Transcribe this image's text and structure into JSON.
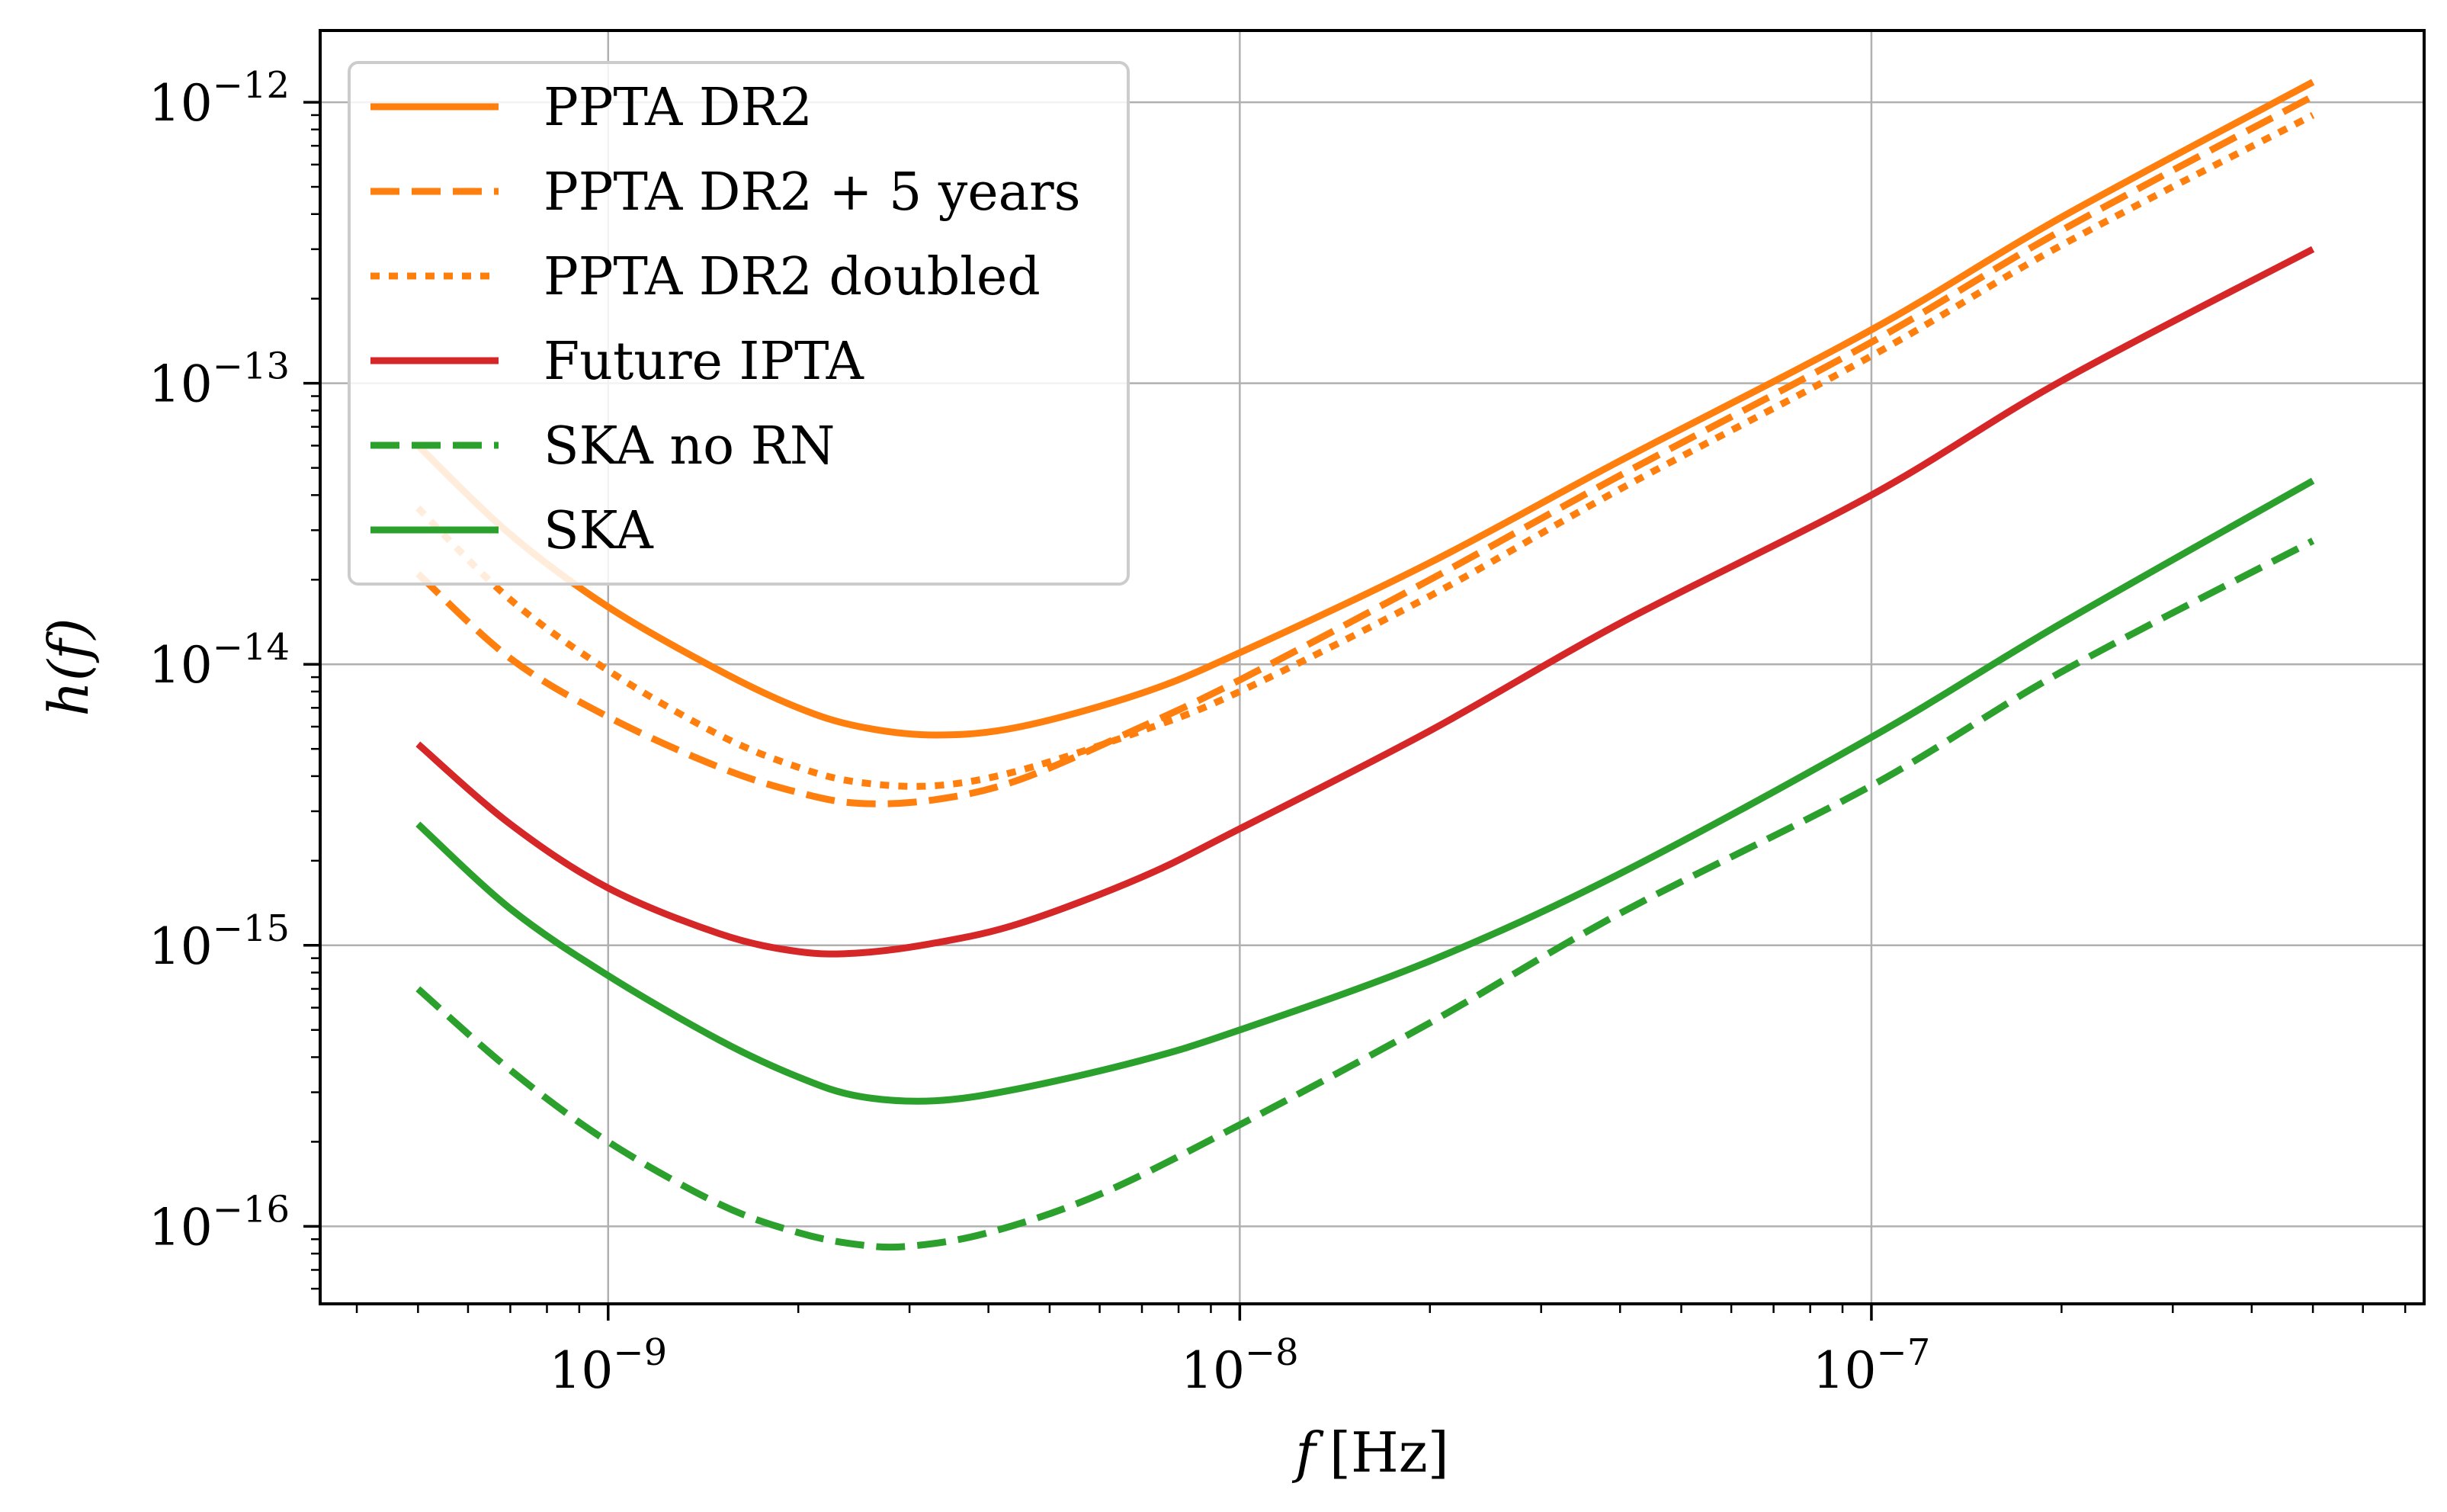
{
  "chart_data": {
    "type": "line",
    "title": "",
    "xlabel": "f",
    "xlabel_unit": "[Hz]",
    "ylabel": "h(f)",
    "xscale": "log",
    "yscale": "log",
    "xlim": [
      3.5e-10,
      7.5e-07
    ],
    "ylim": [
      5.3e-17,
      1.8e-12
    ],
    "grid": true,
    "legend_position": "top-left",
    "x_ticks": [
      {
        "value": 1e-09,
        "base": "10",
        "exp": "−9"
      },
      {
        "value": 1e-08,
        "base": "10",
        "exp": "−8"
      },
      {
        "value": 1e-07,
        "base": "10",
        "exp": "−7"
      }
    ],
    "y_ticks": [
      {
        "value": 1e-16,
        "base": "10",
        "exp": "−16"
      },
      {
        "value": 1e-15,
        "base": "10",
        "exp": "−15"
      },
      {
        "value": 1e-14,
        "base": "10",
        "exp": "−14"
      },
      {
        "value": 1e-13,
        "base": "10",
        "exp": "−13"
      },
      {
        "value": 1e-12,
        "base": "10",
        "exp": "−12"
      }
    ],
    "series": [
      {
        "name": "PPTA DR2",
        "color": "#ff7f0e",
        "dash": "solid",
        "x": [
          5e-10,
          7e-10,
          1e-09,
          1.5e-09,
          2e-09,
          2.5e-09,
          3.3e-09,
          4.5e-09,
          7e-09,
          1e-08,
          2e-08,
          4e-08,
          1e-07,
          2e-07,
          5e-07
        ],
        "y": [
          6e-14,
          2.9e-14,
          1.6e-14,
          9.5e-15,
          7e-15,
          6e-15,
          5.6e-15,
          6e-15,
          7.9e-15,
          1.1e-14,
          2.3e-14,
          5.3e-14,
          1.55e-13,
          3.9e-13,
          1.18e-12
        ]
      },
      {
        "name": "PPTA DR2 + 5 years",
        "color": "#ff7f0e",
        "dash": "dashed",
        "x": [
          5e-10,
          7e-10,
          1e-09,
          1.5e-09,
          2e-09,
          2.5e-09,
          3.3e-09,
          4.5e-09,
          7e-09,
          1e-08,
          2e-08,
          4e-08,
          1e-07,
          2e-07,
          5e-07
        ],
        "y": [
          2.1e-14,
          1.05e-14,
          6.5e-15,
          4.3e-15,
          3.5e-15,
          3.2e-15,
          3.3e-15,
          3.9e-15,
          6e-15,
          8.8e-15,
          2e-14,
          4.7e-14,
          1.4e-13,
          3.5e-13,
          1.05e-12
        ]
      },
      {
        "name": "PPTA DR2 doubled",
        "color": "#ff7f0e",
        "dash": "dotted",
        "x": [
          5e-10,
          7e-10,
          1e-09,
          1.5e-09,
          2e-09,
          2.5e-09,
          3.3e-09,
          4.5e-09,
          7e-09,
          1e-08,
          2e-08,
          4e-08,
          1e-07,
          2e-07,
          5e-07
        ],
        "y": [
          3.6e-14,
          1.7e-14,
          9.5e-15,
          5.6e-15,
          4.3e-15,
          3.8e-15,
          3.7e-15,
          4.2e-15,
          5.8e-15,
          8e-15,
          1.75e-14,
          4.2e-14,
          1.25e-13,
          3.1e-13,
          9e-13
        ]
      },
      {
        "name": "Future IPTA",
        "color": "#d62728",
        "dash": "solid",
        "x": [
          5e-10,
          7e-10,
          1e-09,
          1.5e-09,
          2e-09,
          2.5e-09,
          3.3e-09,
          4.5e-09,
          7e-09,
          1e-08,
          2e-08,
          4e-08,
          1e-07,
          2e-07,
          5e-07
        ],
        "y": [
          5.2e-15,
          2.7e-15,
          1.6e-15,
          1.1e-15,
          9.5e-16,
          9.4e-16,
          1.02e-15,
          1.2e-15,
          1.75e-15,
          2.6e-15,
          5.8e-15,
          1.4e-14,
          4e-14,
          1.02e-13,
          3e-13
        ]
      },
      {
        "name": "SKA no RN",
        "color": "#2ca02c",
        "dash": "dashed",
        "x": [
          5e-10,
          7e-10,
          1e-09,
          1.5e-09,
          2e-09,
          2.5e-09,
          3e-09,
          4e-09,
          6e-09,
          1e-08,
          2e-08,
          4e-08,
          1e-07,
          2e-07,
          5e-07
        ],
        "y": [
          7e-16,
          3.6e-16,
          2e-16,
          1.2e-16,
          9.5e-17,
          8.6e-17,
          8.5e-17,
          9.5e-17,
          1.3e-16,
          2.3e-16,
          5.3e-16,
          1.3e-15,
          3.7e-15,
          9.4e-15,
          2.75e-14
        ]
      },
      {
        "name": "SKA",
        "color": "#2ca02c",
        "dash": "solid",
        "x": [
          5e-10,
          7e-10,
          1e-09,
          1.5e-09,
          2e-09,
          2.5e-09,
          3.3e-09,
          4.5e-09,
          7e-09,
          1e-08,
          2e-08,
          4e-08,
          1e-07,
          2e-07,
          5e-07
        ],
        "y": [
          2.7e-15,
          1.35e-15,
          7.8e-16,
          4.6e-16,
          3.4e-16,
          2.9e-16,
          2.8e-16,
          3.1e-16,
          3.9e-16,
          5e-16,
          8.8e-16,
          1.8e-15,
          5.5e-15,
          1.4e-14,
          4.5e-14
        ]
      }
    ]
  }
}
